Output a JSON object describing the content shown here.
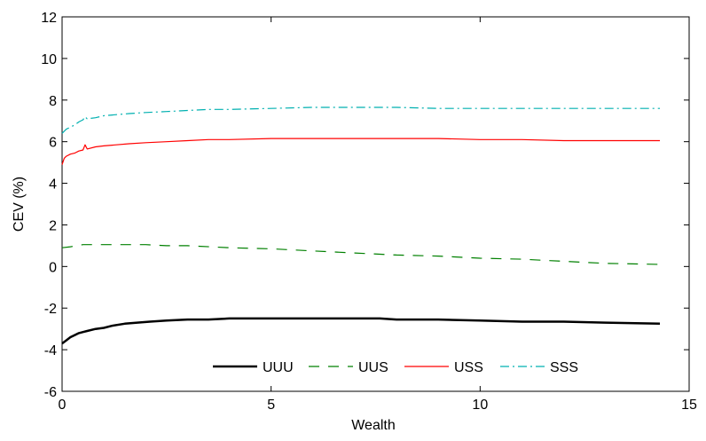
{
  "chart_data": {
    "type": "line",
    "title": "",
    "xlabel": "Wealth",
    "ylabel": "CEV (%)",
    "xlim": [
      0,
      15
    ],
    "ylim": [
      -6,
      12
    ],
    "xticks": [
      0,
      5,
      10,
      15
    ],
    "yticks": [
      -6,
      -4,
      -2,
      0,
      2,
      4,
      6,
      8,
      10,
      12
    ],
    "xtick_labels": [
      "0",
      "5",
      "10",
      "15"
    ],
    "ytick_labels": [
      "-6",
      "-4",
      "-2",
      "0",
      "2",
      "4",
      "6",
      "8",
      "10",
      "12"
    ],
    "grid": false,
    "legend_position": "bottom-center",
    "series": [
      {
        "name": "UUU",
        "color": "#000000",
        "style": "solid",
        "x": [
          0.0,
          0.1,
          0.2,
          0.3,
          0.4,
          0.5,
          0.6,
          0.8,
          1.0,
          1.2,
          1.5,
          1.8,
          2.1,
          2.5,
          3.0,
          3.5,
          4.0,
          5.0,
          6.0,
          7.0,
          7.6,
          8.0,
          9.0,
          10.0,
          11.0,
          12.0,
          13.0,
          14.3
        ],
        "y": [
          -3.7,
          -3.55,
          -3.4,
          -3.3,
          -3.2,
          -3.15,
          -3.1,
          -3.0,
          -2.95,
          -2.85,
          -2.75,
          -2.7,
          -2.65,
          -2.6,
          -2.55,
          -2.55,
          -2.5,
          -2.5,
          -2.5,
          -2.5,
          -2.5,
          -2.55,
          -2.55,
          -2.6,
          -2.65,
          -2.65,
          -2.7,
          -2.75
        ]
      },
      {
        "name": "UUS",
        "color": "#008000",
        "style": "dashed",
        "x": [
          0.0,
          0.2,
          0.5,
          1.0,
          1.5,
          2.0,
          2.5,
          3.0,
          4.0,
          5.0,
          6.0,
          7.0,
          8.0,
          9.0,
          10.0,
          11.0,
          12.0,
          13.0,
          14.3
        ],
        "y": [
          0.9,
          0.95,
          1.05,
          1.05,
          1.05,
          1.05,
          1.0,
          1.0,
          0.9,
          0.85,
          0.75,
          0.65,
          0.55,
          0.5,
          0.4,
          0.35,
          0.25,
          0.15,
          0.1
        ]
      },
      {
        "name": "USS",
        "color": "#ff0000",
        "style": "solid",
        "x": [
          0.0,
          0.05,
          0.1,
          0.2,
          0.3,
          0.4,
          0.5,
          0.55,
          0.6,
          0.8,
          1.0,
          1.3,
          1.6,
          2.0,
          2.5,
          3.0,
          3.5,
          4.0,
          5.0,
          6.0,
          7.0,
          8.0,
          9.0,
          10.0,
          11.0,
          12.0,
          13.0,
          14.3
        ],
        "y": [
          4.9,
          5.2,
          5.3,
          5.4,
          5.45,
          5.55,
          5.6,
          5.85,
          5.65,
          5.75,
          5.8,
          5.85,
          5.9,
          5.95,
          6.0,
          6.05,
          6.1,
          6.1,
          6.15,
          6.15,
          6.15,
          6.15,
          6.15,
          6.1,
          6.1,
          6.05,
          6.05,
          6.05
        ]
      },
      {
        "name": "SSS",
        "color": "#00b0b0",
        "style": "dashdot",
        "x": [
          0.0,
          0.1,
          0.2,
          0.3,
          0.4,
          0.5,
          0.55,
          0.6,
          0.8,
          1.0,
          1.3,
          1.6,
          2.0,
          2.5,
          3.0,
          3.5,
          4.0,
          5.0,
          6.0,
          7.0,
          8.0,
          9.0,
          10.0,
          11.0,
          12.0,
          13.0,
          14.3
        ],
        "y": [
          6.4,
          6.6,
          6.7,
          6.8,
          6.95,
          7.05,
          7.2,
          7.1,
          7.15,
          7.25,
          7.3,
          7.35,
          7.4,
          7.45,
          7.5,
          7.55,
          7.55,
          7.6,
          7.65,
          7.65,
          7.65,
          7.6,
          7.6,
          7.6,
          7.6,
          7.6,
          7.6
        ]
      }
    ]
  }
}
